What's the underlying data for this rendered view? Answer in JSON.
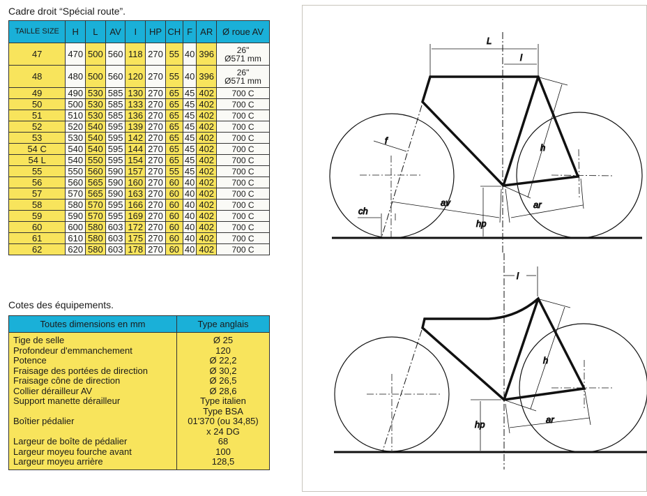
{
  "frame_table": {
    "title": "Cadre droit “Spécial route”.",
    "headers": [
      "TAILLE SIZE",
      "H",
      "L",
      "AV",
      "I",
      "HP",
      "CH",
      "F",
      "AR",
      "Ø roue AV"
    ],
    "rows": [
      [
        "47",
        "470",
        "500",
        "560",
        "118",
        "270",
        "55",
        "40",
        "396",
        "26\" Ø571 mm"
      ],
      [
        "48",
        "480",
        "500",
        "560",
        "120",
        "270",
        "55",
        "40",
        "396",
        "26\" Ø571 mm"
      ],
      [
        "49",
        "490",
        "530",
        "585",
        "130",
        "270",
        "65",
        "45",
        "402",
        "700 C"
      ],
      [
        "50",
        "500",
        "530",
        "585",
        "133",
        "270",
        "65",
        "45",
        "402",
        "700 C"
      ],
      [
        "51",
        "510",
        "530",
        "585",
        "136",
        "270",
        "65",
        "45",
        "402",
        "700 C"
      ],
      [
        "52",
        "520",
        "540",
        "595",
        "139",
        "270",
        "65",
        "45",
        "402",
        "700 C"
      ],
      [
        "53",
        "530",
        "540",
        "595",
        "142",
        "270",
        "65",
        "45",
        "402",
        "700 C"
      ],
      [
        "54 C",
        "540",
        "540",
        "595",
        "144",
        "270",
        "65",
        "45",
        "402",
        "700 C"
      ],
      [
        "54 L",
        "540",
        "550",
        "595",
        "154",
        "270",
        "65",
        "45",
        "402",
        "700 C"
      ],
      [
        "55",
        "550",
        "560",
        "590",
        "157",
        "270",
        "55",
        "45",
        "402",
        "700 C"
      ],
      [
        "56",
        "560",
        "565",
        "590",
        "160",
        "270",
        "60",
        "40",
        "402",
        "700 C"
      ],
      [
        "57",
        "570",
        "565",
        "590",
        "163",
        "270",
        "60",
        "40",
        "402",
        "700 C"
      ],
      [
        "58",
        "580",
        "570",
        "595",
        "166",
        "270",
        "60",
        "40",
        "402",
        "700 C"
      ],
      [
        "59",
        "590",
        "570",
        "595",
        "169",
        "270",
        "60",
        "40",
        "402",
        "700 C"
      ],
      [
        "60",
        "600",
        "580",
        "603",
        "172",
        "270",
        "60",
        "40",
        "402",
        "700 C"
      ],
      [
        "61",
        "610",
        "580",
        "603",
        "175",
        "270",
        "60",
        "40",
        "402",
        "700 C"
      ],
      [
        "62",
        "620",
        "580",
        "603",
        "178",
        "270",
        "60",
        "40",
        "402",
        "700 C"
      ]
    ]
  },
  "equipment_table": {
    "title": "Cotes des équipements.",
    "headers": [
      "Toutes dimensions en mm",
      "Type anglais"
    ],
    "rows": [
      [
        "Tige de selle",
        "Ø 25"
      ],
      [
        "Profondeur d'emmanchement",
        "120"
      ],
      [
        "Potence",
        "Ø 22,2"
      ],
      [
        "Fraisage des portées de direction",
        "Ø 30,2"
      ],
      [
        "Fraisage cône de direction",
        "Ø 26,5"
      ],
      [
        "Collier dérailleur AV",
        "Ø 28,6"
      ],
      [
        "Support manette dérailleur",
        "Type italien"
      ],
      [
        "Boîtier pédalier",
        "Type BSA\n01'370 (ou 34,85)\nx 24 DG"
      ],
      [
        "Largeur de boîte de pédalier",
        "68"
      ],
      [
        "Largeur moyeu fourche avant",
        "100"
      ],
      [
        "Largeur moyeu arrière",
        "128,5"
      ]
    ]
  },
  "diagram": {
    "top_labels": {
      "L": "L",
      "l": "l",
      "h": "h",
      "f": "f",
      "ch": "ch",
      "av": "av",
      "ar": "ar",
      "hp": "hp"
    },
    "bottom_labels": {
      "l": "l",
      "h": "h",
      "ar": "ar",
      "hp": "hp"
    }
  },
  "colors": {
    "header": "#1ab0d8",
    "highlight": "#f8e45c"
  }
}
